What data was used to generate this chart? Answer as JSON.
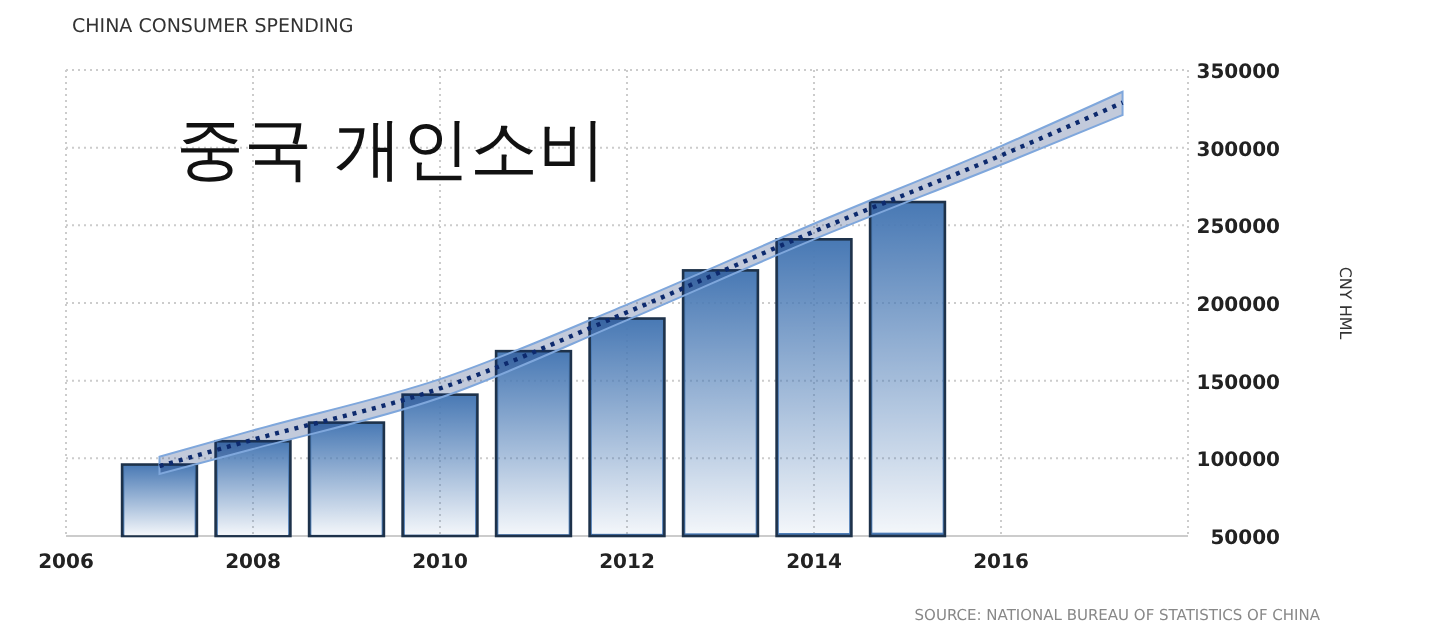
{
  "chart_data": {
    "type": "bar",
    "title": "CHINA CONSUMER SPENDING",
    "ylabel": "CNY HML",
    "annotations": [
      "중국 개인소비",
      "SOURCE: NATIONAL BUREAU OF STATISTICS OF CHINA"
    ],
    "x": [
      2007,
      2008,
      2009,
      2010,
      2011,
      2012,
      2013,
      2014,
      2015
    ],
    "series": [
      {
        "color": "#4a7ab5",
        "values": [
          96000,
          111000,
          123000,
          141000,
          169000,
          190000,
          221000,
          241000,
          265000
        ]
      },
      {
        "type": "line",
        "color": "#0d2a6e",
        "line_style": "dotted",
        "x": [
          2007,
          2008,
          2010,
          2012,
          2014,
          2016,
          2017.3
        ],
        "values": [
          95000,
          112000,
          145000,
          194000,
          246000,
          295000,
          329000
        ],
        "lower": [
          90000,
          106000,
          139000,
          189000,
          241000,
          289000,
          321000
        ],
        "upper": [
          101000,
          118000,
          151000,
          199000,
          251000,
          301000,
          336000
        ]
      }
    ],
    "xlim": [
      2006,
      2018
    ],
    "xticks": [
      2006,
      2008,
      2010,
      2012,
      2014,
      2016
    ],
    "ylim": [
      50000,
      350000
    ],
    "yticks": [
      50000,
      100000,
      150000,
      200000,
      250000,
      300000,
      350000
    ],
    "grid": true
  }
}
